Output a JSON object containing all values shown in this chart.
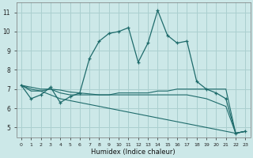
{
  "xlabel": "Humidex (Indice chaleur)",
  "background_color": "#cce8e8",
  "grid_color": "#aacfcf",
  "line_color": "#1e6b6b",
  "x": [
    0,
    1,
    2,
    3,
    4,
    5,
    6,
    7,
    8,
    9,
    10,
    11,
    12,
    13,
    14,
    15,
    16,
    17,
    18,
    19,
    20,
    21,
    22,
    23
  ],
  "y_main": [
    7.2,
    6.5,
    6.7,
    7.1,
    6.3,
    6.6,
    6.8,
    8.6,
    9.5,
    9.9,
    10.0,
    10.2,
    8.4,
    9.4,
    11.1,
    9.8,
    9.4,
    9.5,
    7.4,
    7.0,
    6.8,
    6.5,
    4.7,
    4.8
  ],
  "y_flat": [
    7.2,
    6.9,
    6.9,
    7.0,
    6.8,
    6.7,
    6.7,
    6.7,
    6.7,
    6.7,
    6.8,
    6.8,
    6.8,
    6.8,
    6.9,
    6.9,
    7.0,
    7.0,
    7.0,
    7.0,
    7.0,
    7.0,
    4.7,
    4.8
  ],
  "y_diag1": [
    7.2,
    7.1,
    7.0,
    7.0,
    6.95,
    6.85,
    6.8,
    6.75,
    6.7,
    6.7,
    6.7,
    6.7,
    6.7,
    6.7,
    6.7,
    6.7,
    6.7,
    6.7,
    6.6,
    6.5,
    6.3,
    6.1,
    4.7,
    4.8
  ],
  "y_diag2": [
    7.2,
    7.0,
    6.9,
    6.7,
    6.5,
    6.4,
    6.3,
    6.2,
    6.1,
    6.0,
    5.9,
    5.8,
    5.7,
    5.6,
    5.5,
    5.4,
    5.3,
    5.2,
    5.1,
    5.0,
    4.9,
    4.8,
    4.7,
    4.8
  ],
  "xlim": [
    -0.5,
    23.5
  ],
  "ylim": [
    4.5,
    11.5
  ],
  "yticks": [
    5,
    6,
    7,
    8,
    9,
    10,
    11
  ],
  "xticks": [
    0,
    1,
    2,
    3,
    4,
    5,
    6,
    7,
    8,
    9,
    10,
    11,
    12,
    13,
    14,
    15,
    16,
    17,
    18,
    19,
    20,
    21,
    22,
    23
  ]
}
